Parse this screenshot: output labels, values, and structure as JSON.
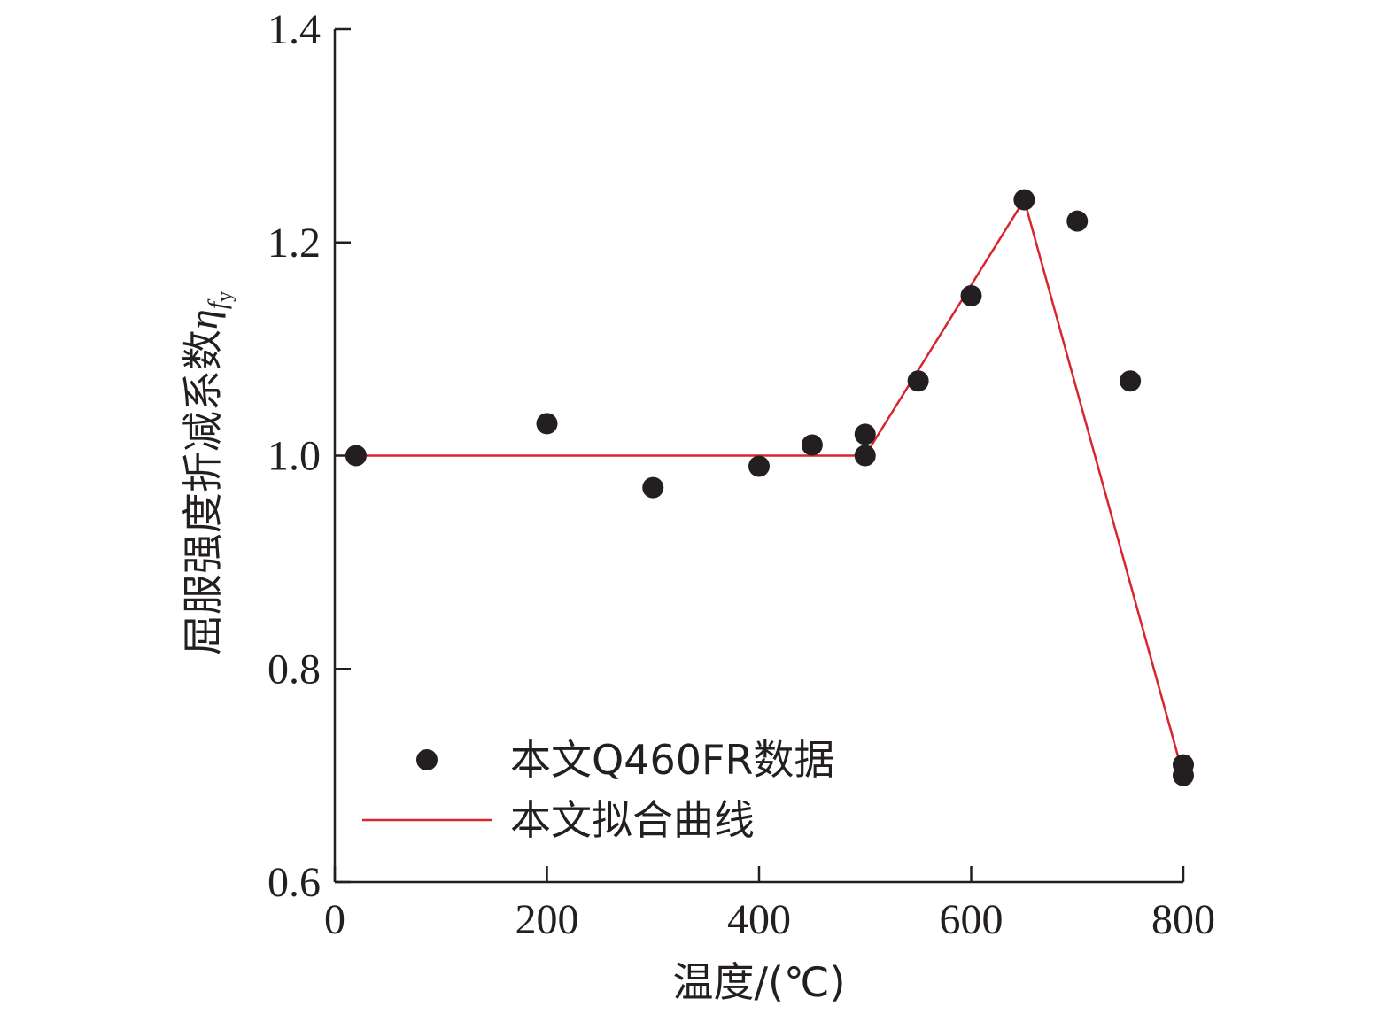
{
  "chart_data": {
    "type": "scatter",
    "xlabel": "温度/(℃)",
    "ylabel": "屈服强度折减系数",
    "ylabel_symbol": "η",
    "ylabel_subscript": "f",
    "ylabel_subsubscript": "y",
    "xlim": [
      0,
      800
    ],
    "ylim": [
      0.6,
      1.4
    ],
    "xticks": [
      "0",
      "200",
      "400",
      "600",
      "800"
    ],
    "yticks": [
      "0.6",
      "0.8",
      "1.0",
      "1.2",
      "1.4"
    ],
    "grid": false,
    "legend_position": "bottom-left",
    "series": [
      {
        "name": "本文Q460FR数据",
        "kind": "scatter",
        "color": "#231f20",
        "points": [
          {
            "x": 20,
            "y": 1.0
          },
          {
            "x": 200,
            "y": 1.03
          },
          {
            "x": 300,
            "y": 0.97
          },
          {
            "x": 400,
            "y": 0.99
          },
          {
            "x": 450,
            "y": 1.01
          },
          {
            "x": 500,
            "y": 1.02
          },
          {
            "x": 500,
            "y": 1.0
          },
          {
            "x": 550,
            "y": 1.07
          },
          {
            "x": 600,
            "y": 1.15
          },
          {
            "x": 650,
            "y": 1.24
          },
          {
            "x": 700,
            "y": 1.22
          },
          {
            "x": 750,
            "y": 1.07
          },
          {
            "x": 800,
            "y": 0.71
          },
          {
            "x": 800,
            "y": 0.7
          }
        ]
      },
      {
        "name": "本文拟合曲线",
        "kind": "line",
        "color": "#d7262e",
        "points": [
          {
            "x": 20,
            "y": 1.0
          },
          {
            "x": 500,
            "y": 1.0
          },
          {
            "x": 650,
            "y": 1.24
          },
          {
            "x": 800,
            "y": 0.7
          }
        ]
      }
    ]
  }
}
